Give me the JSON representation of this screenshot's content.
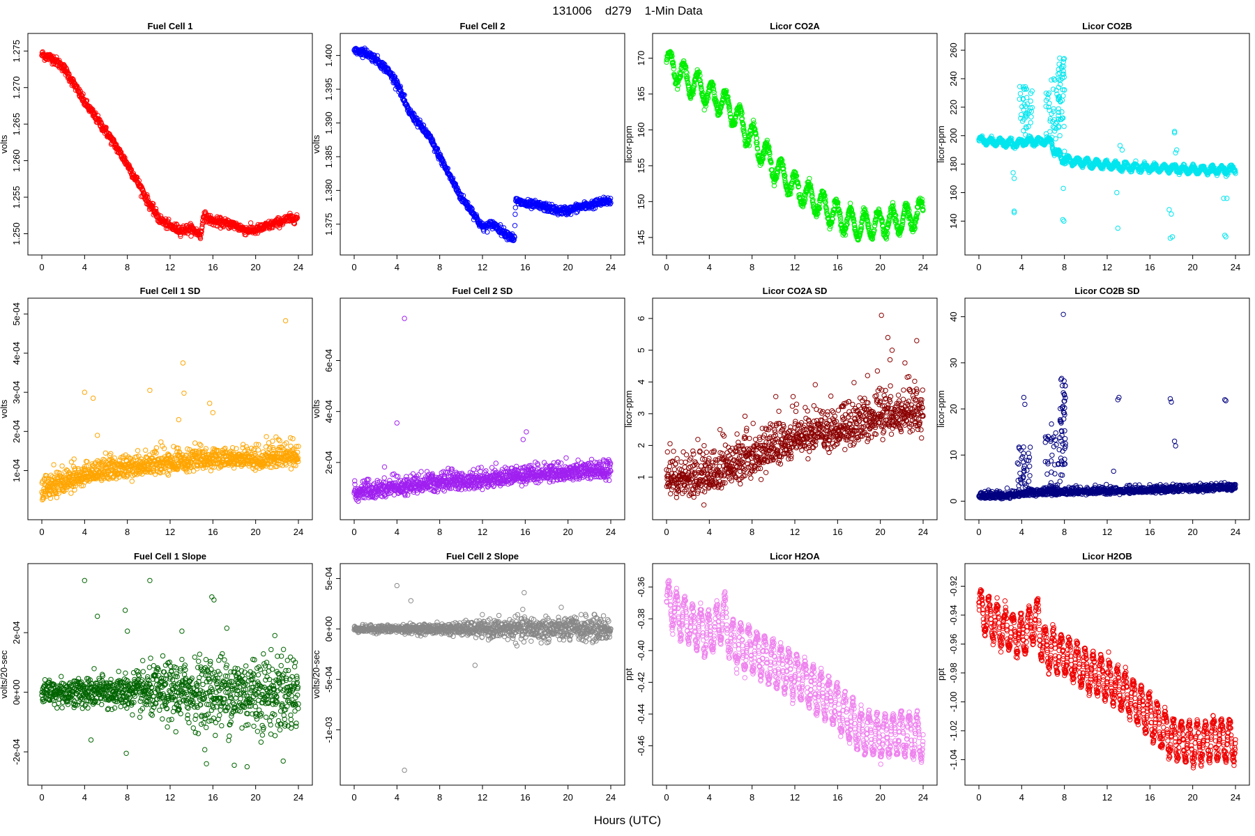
{
  "figure": {
    "title": "131006    d279    1-Min Data",
    "xlabel": "Hours (UTC)"
  },
  "chart_data": [
    {
      "type": "scatter",
      "title": "Fuel Cell 1",
      "ylabel": "volts",
      "color": "#ff0000",
      "xlim": [
        0,
        24
      ],
      "ylim": [
        1.249,
        1.2755
      ],
      "xticks": [
        0,
        4,
        8,
        12,
        16,
        20,
        24
      ],
      "yticks": [
        1.25,
        1.255,
        1.26,
        1.265,
        1.27,
        1.275
      ],
      "ytick_labels": [
        "1.250",
        "1.255",
        "1.260",
        "1.265",
        "1.270",
        "1.275"
      ],
      "shape": "knots",
      "x": [
        0,
        1,
        2,
        3,
        4,
        5,
        6,
        7,
        8,
        9,
        10,
        11,
        12,
        13,
        14,
        14.9,
        15.1,
        16,
        17,
        18,
        19,
        20,
        21,
        22,
        23,
        23.9
      ],
      "y": [
        1.2745,
        1.274,
        1.2728,
        1.2705,
        1.268,
        1.266,
        1.264,
        1.2618,
        1.2595,
        1.257,
        1.2542,
        1.252,
        1.251,
        1.2505,
        1.2507,
        1.2498,
        1.2525,
        1.2517,
        1.2515,
        1.2512,
        1.2505,
        1.2505,
        1.251,
        1.2515,
        1.252,
        1.2522
      ],
      "noise": 0.0003,
      "n": 900
    },
    {
      "type": "scatter",
      "title": "Fuel Cell 2",
      "ylabel": "volts",
      "color": "#0000ff",
      "xlim": [
        0,
        24
      ],
      "ylim": [
        1.3725,
        1.4012
      ],
      "xticks": [
        0,
        4,
        8,
        12,
        16,
        20,
        24
      ],
      "yticks": [
        1.375,
        1.38,
        1.385,
        1.39,
        1.395,
        1.4
      ],
      "ytick_labels": [
        "1.375",
        "1.380",
        "1.385",
        "1.390",
        "1.395",
        "1.400"
      ],
      "shape": "knots",
      "x": [
        0,
        1,
        2,
        3,
        4,
        5,
        6,
        7,
        8,
        9,
        10,
        11,
        12,
        13,
        14,
        15,
        15.1,
        16,
        17,
        18,
        19,
        20,
        21,
        22,
        23,
        24
      ],
      "y": [
        1.4008,
        1.4005,
        1.3995,
        1.398,
        1.396,
        1.392,
        1.39,
        1.388,
        1.385,
        1.382,
        1.379,
        1.377,
        1.3745,
        1.375,
        1.3738,
        1.3728,
        1.3785,
        1.378,
        1.3778,
        1.3775,
        1.377,
        1.377,
        1.3775,
        1.3778,
        1.3782,
        1.3785
      ],
      "noise": 0.0003,
      "n": 900
    },
    {
      "type": "scatter",
      "title": "Licor CO2A",
      "ylabel": "licor-ppm",
      "color": "#00ee00",
      "xlim": [
        0,
        24
      ],
      "ylim": [
        144.5,
        171.5
      ],
      "xticks": [
        0,
        4,
        8,
        12,
        16,
        20,
        24
      ],
      "yticks": [
        145,
        150,
        155,
        160,
        165,
        170
      ],
      "ytick_labels": [
        "145",
        "150",
        "155",
        "160",
        "165",
        "170"
      ],
      "shape": "knots_wave",
      "x": [
        0,
        2,
        4,
        6,
        8,
        10,
        12,
        14,
        16,
        18,
        20,
        22,
        24
      ],
      "y": [
        169.5,
        167,
        165,
        163,
        159,
        155,
        152,
        150,
        148,
        146.5,
        147,
        147.5,
        148.5
      ],
      "amp": 1.8,
      "period": 1.3,
      "noise": 0.3,
      "n": 1100
    },
    {
      "type": "scatter",
      "title": "Licor CO2B",
      "ylabel": "licor-ppm",
      "color": "#00e5ee",
      "xlim": [
        0,
        24
      ],
      "ylim": [
        126,
        262
      ],
      "xticks": [
        0,
        4,
        8,
        12,
        16,
        20,
        24
      ],
      "yticks": [
        140,
        160,
        180,
        200,
        220,
        240,
        260
      ],
      "ytick_labels": [
        "140",
        "160",
        "180",
        "200",
        "220",
        "240",
        "260"
      ],
      "shape": "knots_wave",
      "x": [
        0,
        2,
        3.9,
        4,
        6.8,
        7,
        8,
        10,
        14,
        18,
        20,
        24
      ],
      "y": [
        197,
        195,
        194,
        196,
        196,
        190,
        183,
        181,
        178,
        177,
        176,
        176
      ],
      "amp": 2.2,
      "period": 0.9,
      "noise": 0.8,
      "n": 1100,
      "spikes": [
        [
          3.8,
          5.0,
          200,
          235
        ],
        [
          6.1,
          7.6,
          195,
          240
        ],
        [
          7.4,
          8.0,
          205,
          255
        ]
      ],
      "outliers": [
        [
          3.2,
          174
        ],
        [
          3.3,
          170
        ],
        [
          3.3,
          147
        ],
        [
          3.3,
          146
        ],
        [
          7.9,
          163
        ],
        [
          7.85,
          141
        ],
        [
          7.95,
          140
        ],
        [
          8.0,
          189
        ],
        [
          12.9,
          160
        ],
        [
          13.0,
          135
        ],
        [
          13.2,
          193
        ],
        [
          13.4,
          190
        ],
        [
          17.8,
          148
        ],
        [
          17.9,
          128
        ],
        [
          18.0,
          145
        ],
        [
          18.1,
          129
        ],
        [
          18.3,
          203
        ],
        [
          18.3,
          202
        ],
        [
          18.4,
          188
        ],
        [
          18.5,
          190
        ],
        [
          22.9,
          156
        ],
        [
          23.0,
          130
        ],
        [
          23.1,
          129
        ],
        [
          23.2,
          156
        ]
      ]
    },
    {
      "type": "scatter",
      "title": "Fuel Cell 1 SD",
      "ylabel": "volts",
      "color": "#ffa500",
      "xlim": [
        0,
        24
      ],
      "ylim": [
        1e-05,
        0.000505
      ],
      "xticks": [
        0,
        4,
        8,
        12,
        16,
        20,
        24
      ],
      "yticks": [
        0.0001,
        0.0002,
        0.0003,
        0.0004,
        0.0005
      ],
      "ytick_labels": [
        "1e-04",
        "2e-04",
        "3e-04",
        "4e-04",
        "5e-04"
      ],
      "shape": "trend",
      "x": [
        0,
        2,
        4,
        8,
        12,
        16,
        20,
        24
      ],
      "y": [
        4e-05,
        6e-05,
        8e-05,
        0.0001,
        0.00011,
        0.00012,
        0.00012,
        0.00013
      ],
      "noise": 2.5e-05,
      "n": 1100,
      "outliers": [
        [
          4.0,
          0.0003
        ],
        [
          4.8,
          0.000285
        ],
        [
          10.1,
          0.000305
        ],
        [
          13.2,
          0.000375
        ],
        [
          13.3,
          0.000298
        ],
        [
          15.7,
          0.000272
        ],
        [
          22.8,
          0.000483
        ],
        [
          5.2,
          0.00019
        ],
        [
          12.8,
          0.00023
        ],
        [
          16.0,
          0.000248
        ]
      ]
    },
    {
      "type": "scatter",
      "title": "Fuel Cell 2 SD",
      "ylabel": "volts",
      "color": "#a020f0",
      "xlim": [
        0,
        24
      ],
      "ylim": [
        3e-05,
        0.00079
      ],
      "xticks": [
        0,
        4,
        8,
        12,
        16,
        20,
        24
      ],
      "yticks": [
        0.0002,
        0.0004,
        0.0006
      ],
      "ytick_labels": [
        "2e-04",
        "4e-04",
        "6e-04"
      ],
      "shape": "trend",
      "x": [
        0,
        2,
        4,
        8,
        12,
        16,
        20,
        24
      ],
      "y": [
        7e-05,
        8e-05,
        9e-05,
        0.00011,
        0.00012,
        0.00014,
        0.00015,
        0.00016
      ],
      "noise": 3e-05,
      "n": 1100,
      "outliers": [
        [
          4.7,
          0.000765
        ],
        [
          4.0,
          0.000355
        ],
        [
          16.1,
          0.00032
        ],
        [
          15.8,
          0.00029
        ]
      ]
    },
    {
      "type": "scatter",
      "title": "Licor CO2A SD",
      "ylabel": "licor-ppm",
      "color": "#8b0000",
      "xlim": [
        0,
        24
      ],
      "ylim": [
        0.1,
        6.2
      ],
      "xticks": [
        0,
        4,
        8,
        12,
        16,
        20,
        24
      ],
      "yticks": [
        1,
        2,
        3,
        4,
        5,
        6
      ],
      "ytick_labels": [
        "1",
        "2",
        "3",
        "4",
        "5",
        "6"
      ],
      "shape": "trend",
      "x": [
        0,
        2,
        4,
        8,
        12,
        16,
        20,
        24
      ],
      "y": [
        0.8,
        0.8,
        0.9,
        1.4,
        2.0,
        2.3,
        2.7,
        2.9
      ],
      "noise": 0.6,
      "n": 1100,
      "outliers": [
        [
          20.1,
          6.1
        ],
        [
          20.7,
          5.4
        ],
        [
          21.1,
          5.0
        ],
        [
          23.4,
          5.3
        ],
        [
          22.3,
          4.6
        ],
        [
          20.9,
          4.7
        ],
        [
          18.8,
          4.2
        ]
      ]
    },
    {
      "type": "scatter",
      "title": "Licor CO2B SD",
      "ylabel": "licor-ppm",
      "color": "#000080",
      "xlim": [
        0,
        24
      ],
      "ylim": [
        -1,
        41
      ],
      "xticks": [
        0,
        4,
        8,
        12,
        16,
        20,
        24
      ],
      "yticks": [
        0,
        10,
        20,
        30,
        40
      ],
      "ytick_labels": [
        "0",
        "10",
        "20",
        "30",
        "40"
      ],
      "shape": "trend",
      "x": [
        0,
        3,
        4,
        8,
        12,
        16,
        20,
        24
      ],
      "y": [
        1,
        1,
        1.5,
        1.8,
        2,
        2.2,
        2.5,
        2.8
      ],
      "noise": 0.6,
      "n": 1100,
      "spikes": [
        [
          3.6,
          4.8,
          1,
          12
        ],
        [
          6.2,
          7.8,
          1,
          18
        ],
        [
          7.6,
          8.1,
          5,
          27
        ]
      ],
      "outliers": [
        [
          7.9,
          40.5
        ],
        [
          4.2,
          22.5
        ],
        [
          4.3,
          21
        ],
        [
          7.9,
          23.5
        ],
        [
          8.0,
          23
        ],
        [
          13.0,
          22
        ],
        [
          13.1,
          22.5
        ],
        [
          17.9,
          22.2
        ],
        [
          18.0,
          21.5
        ],
        [
          18.3,
          13
        ],
        [
          18.4,
          12
        ],
        [
          23.0,
          22
        ],
        [
          23.1,
          21.8
        ],
        [
          12.6,
          6.5
        ]
      ]
    },
    {
      "type": "scatter",
      "title": "Fuel Cell 1 Slope",
      "ylabel": "volts/20-sec",
      "color": "#006400",
      "xlim": [
        0,
        24
      ],
      "ylim": [
        -0.000265,
        0.000385
      ],
      "xticks": [
        0,
        4,
        8,
        12,
        16,
        20,
        24
      ],
      "yticks": [
        -0.0002,
        0,
        0.0002
      ],
      "ytick_labels": [
        "-2e-04",
        "0e+00",
        "2e-04"
      ],
      "shape": "spread",
      "x": [
        0,
        4,
        8,
        12,
        16,
        20,
        24
      ],
      "sd": [
        2e-05,
        2.5e-05,
        3e-05,
        5e-05,
        6e-05,
        6.5e-05,
        7e-05
      ],
      "n": 1100,
      "outliers": [
        [
          4.0,
          0.000375
        ],
        [
          10.1,
          0.000375
        ],
        [
          5.2,
          0.000255
        ],
        [
          7.8,
          0.000275
        ],
        [
          8.0,
          0.000205
        ],
        [
          13.1,
          0.000205
        ],
        [
          15.9,
          0.00032
        ],
        [
          16.1,
          0.00031
        ],
        [
          17.3,
          0.000215
        ],
        [
          7.9,
          -0.000205
        ],
        [
          4.6,
          -0.00016
        ],
        [
          15.4,
          -0.00024
        ],
        [
          18.0,
          -0.000245
        ],
        [
          19.2,
          -0.00025
        ]
      ]
    },
    {
      "type": "scatter",
      "title": "Fuel Cell 2 Slope",
      "ylabel": "volts/20-sec",
      "color": "#888888",
      "xlim": [
        0,
        24
      ],
      "ylim": [
        -0.00141,
        0.00051
      ],
      "xticks": [
        0,
        4,
        8,
        12,
        16,
        20,
        24
      ],
      "yticks": [
        -0.001,
        -0.0005,
        0,
        0.0005
      ],
      "ytick_labels": [
        "-1e-03",
        "-5e-04",
        "0e+00",
        "5e-04"
      ],
      "shape": "spread",
      "x": [
        0,
        4,
        8,
        12,
        16,
        20,
        24
      ],
      "sd": [
        1.5e-05,
        2e-05,
        2.5e-05,
        4e-05,
        6e-05,
        6e-05,
        6e-05
      ],
      "n": 1100,
      "outliers": [
        [
          4.0,
          0.00043
        ],
        [
          4.7,
          -0.0014
        ],
        [
          11.3,
          -0.00036
        ],
        [
          5.3,
          0.00028
        ],
        [
          15.9,
          0.00036
        ]
      ]
    },
    {
      "type": "scatter",
      "title": "Licor H2OA",
      "ylabel": "ppt",
      "color": "#ee82ee",
      "xlim": [
        0,
        24
      ],
      "ylim": [
        -0.476,
        -0.354
      ],
      "xticks": [
        0,
        4,
        8,
        12,
        16,
        20,
        24
      ],
      "yticks": [
        -0.46,
        -0.44,
        -0.42,
        -0.4,
        -0.38,
        -0.36
      ],
      "ytick_labels": [
        "-0.46",
        "-0.44",
        "-0.42",
        "-0.40",
        "-0.38",
        "-0.36"
      ],
      "shape": "knots_wave",
      "x": [
        0,
        2,
        4,
        5.5,
        6,
        8,
        10,
        12,
        14,
        16,
        18,
        20,
        22,
        24
      ],
      "y": [
        -0.37,
        -0.382,
        -0.39,
        -0.378,
        -0.395,
        -0.4,
        -0.408,
        -0.415,
        -0.425,
        -0.435,
        -0.45,
        -0.455,
        -0.452,
        -0.455
      ],
      "amp": 0.013,
      "period": 0.75,
      "noise": 0.002,
      "n": 1200
    },
    {
      "type": "scatter",
      "title": "Licor H2OB",
      "ylabel": "ppt",
      "color": "#ee0000",
      "xlim": [
        0,
        24
      ],
      "ylim": [
        -1.048,
        -0.914
      ],
      "xticks": [
        0,
        4,
        8,
        12,
        16,
        20,
        24
      ],
      "yticks": [
        -1.04,
        -1.02,
        -1.0,
        -0.98,
        -0.96,
        -0.94,
        -0.92
      ],
      "ytick_labels": [
        "-1.04",
        "-1.02",
        "-1.00",
        "-0.98",
        "-0.96",
        "-0.94",
        "-0.92"
      ],
      "shape": "knots_wave",
      "x": [
        0,
        2,
        4,
        5.5,
        6,
        8,
        10,
        12,
        14,
        16,
        18,
        20,
        22,
        24
      ],
      "y": [
        -0.935,
        -0.948,
        -0.955,
        -0.942,
        -0.962,
        -0.968,
        -0.978,
        -0.985,
        -0.995,
        -1.01,
        -1.025,
        -1.03,
        -1.025,
        -1.028
      ],
      "amp": 0.013,
      "period": 0.75,
      "noise": 0.002,
      "n": 1200
    }
  ]
}
